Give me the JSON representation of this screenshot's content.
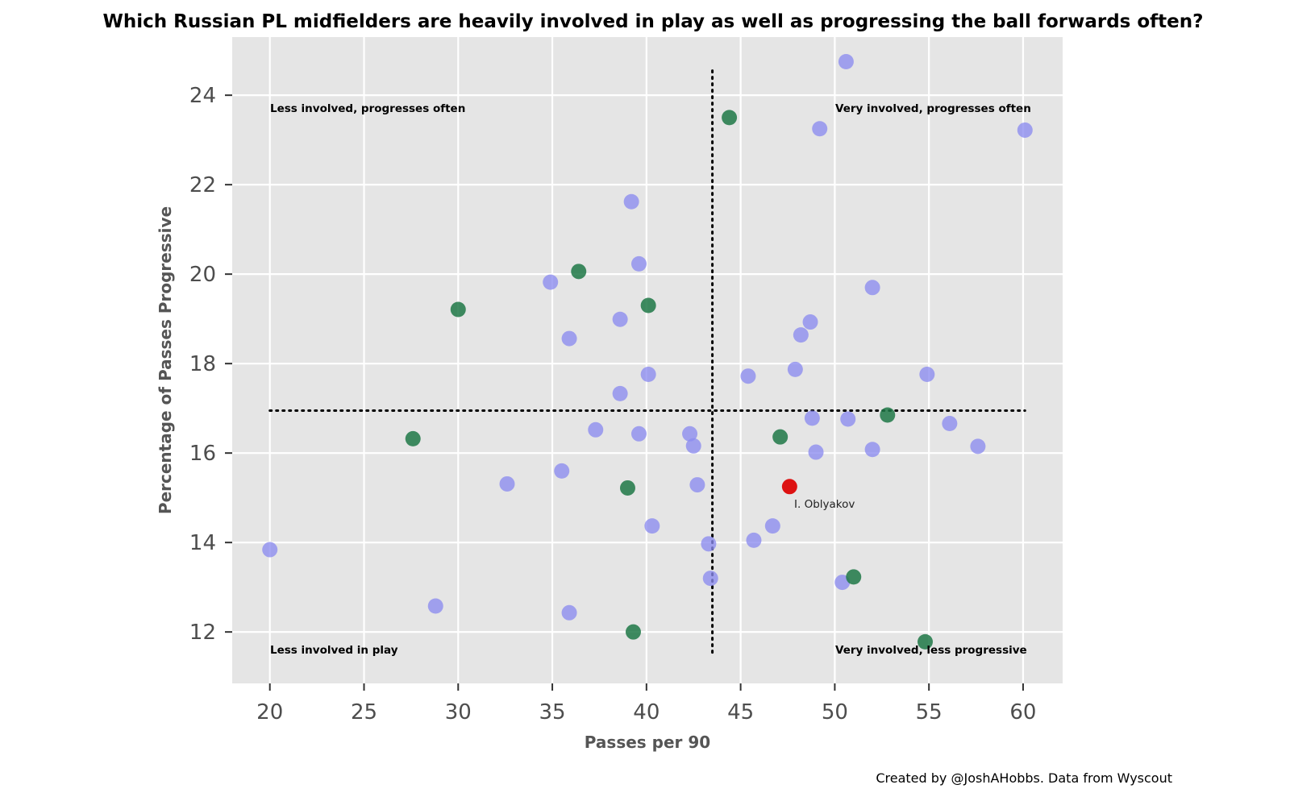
{
  "chart_data": {
    "type": "scatter",
    "title": "Which Russian PL midfielders are heavily involved in play as well as progressing the ball forwards often?",
    "xlabel": "Passes per 90",
    "ylabel": "Percentage of Passes Progressive",
    "xlim": [
      18,
      62.1
    ],
    "ylim": [
      10.85,
      25.3
    ],
    "xticks": [
      20,
      25,
      30,
      35,
      40,
      45,
      50,
      55,
      60
    ],
    "yticks": [
      12,
      14,
      16,
      18,
      20,
      22,
      24
    ],
    "grid": true,
    "ref_lines": {
      "x": 43.5,
      "y": 16.95
    },
    "quadrant_labels": [
      "Less involved, progresses often",
      "Very involved, progresses often",
      "Less involved in play",
      "Very involved, less progressive"
    ],
    "credit": "Created by @JoshAHobbs. Data from Wyscout",
    "colors": {
      "other": "#8c8cf0",
      "group": "#1e7846",
      "highlight": "#dc0000",
      "panel": "#e5e5e5",
      "grid": "#ffffff"
    },
    "series": [
      {
        "points": [
          [
            50.6,
            24.75
          ],
          [
            49.2,
            23.25
          ],
          [
            60.1,
            23.22
          ],
          [
            39.2,
            21.62
          ],
          [
            39.6,
            20.23
          ],
          [
            34.9,
            19.82
          ],
          [
            52.0,
            19.7
          ],
          [
            38.6,
            18.99
          ],
          [
            48.7,
            18.93
          ],
          [
            48.2,
            18.64
          ],
          [
            35.9,
            18.56
          ],
          [
            47.9,
            17.87
          ],
          [
            40.1,
            17.76
          ],
          [
            54.9,
            17.76
          ],
          [
            45.4,
            17.72
          ],
          [
            38.6,
            17.33
          ],
          [
            48.8,
            16.78
          ],
          [
            50.7,
            16.76
          ],
          [
            56.1,
            16.66
          ],
          [
            37.3,
            16.52
          ],
          [
            39.6,
            16.43
          ],
          [
            42.3,
            16.43
          ],
          [
            42.5,
            16.16
          ],
          [
            57.6,
            16.15
          ],
          [
            52.0,
            16.08
          ],
          [
            49.0,
            16.02
          ],
          [
            35.5,
            15.6
          ],
          [
            32.6,
            15.31
          ],
          [
            42.7,
            15.29
          ],
          [
            40.3,
            14.37
          ],
          [
            46.7,
            14.37
          ],
          [
            45.7,
            14.05
          ],
          [
            43.3,
            13.97
          ],
          [
            20.0,
            13.84
          ],
          [
            43.4,
            13.2
          ],
          [
            50.4,
            13.11
          ],
          [
            28.8,
            12.58
          ],
          [
            35.9,
            12.43
          ]
        ]
      },
      {
        "points": [
          [
            44.4,
            23.5
          ],
          [
            36.4,
            20.06
          ],
          [
            40.1,
            19.3
          ],
          [
            30.0,
            19.21
          ],
          [
            52.8,
            16.85
          ],
          [
            47.1,
            16.36
          ],
          [
            27.6,
            16.32
          ],
          [
            39.0,
            15.22
          ],
          [
            51.0,
            13.23
          ],
          [
            39.3,
            12.0
          ],
          [
            54.8,
            11.78
          ]
        ]
      },
      {
        "name": "I. Oblyakov",
        "points": [
          [
            47.6,
            15.25
          ]
        ]
      }
    ]
  }
}
